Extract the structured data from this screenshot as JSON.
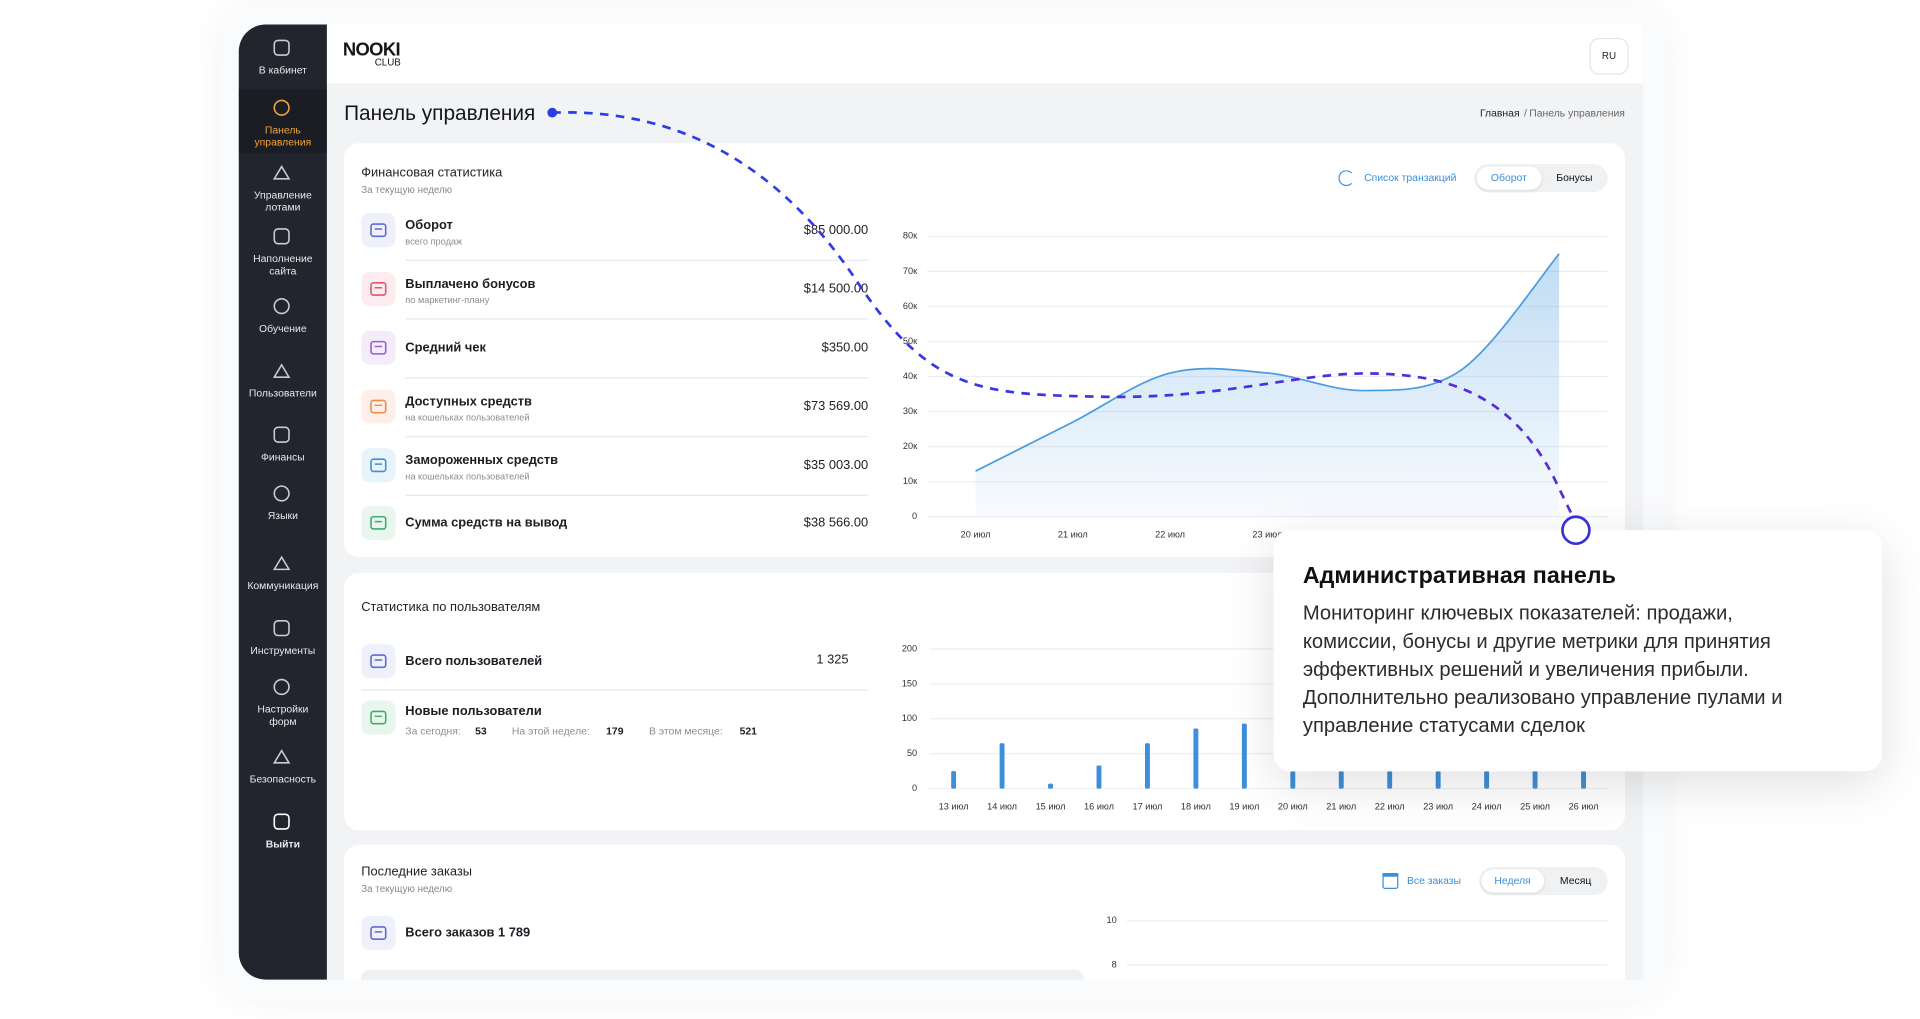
{
  "sidebar": {
    "items": [
      "В кабинет",
      "Панель управления",
      "Управление лотами",
      "Наполнение сайта",
      "Обучение",
      "Пользователи",
      "Финансы",
      "Языки",
      "Коммуникация",
      "Инструменты",
      "Настройки форм",
      "Безопасность",
      "Выйти"
    ]
  },
  "header": {
    "logo": "NOOKI",
    "logo_sub": "CLUB",
    "lang": "RU"
  },
  "page": {
    "title": "Панель управления",
    "breadcrumb": [
      "Главная",
      "/",
      "Панель управления"
    ]
  },
  "finance": {
    "title": "Финансовая статистика",
    "subtitle": "За текущую неделю",
    "link": "Список транзакций",
    "tabs": [
      "Оборот",
      "Бонусы"
    ],
    "rows": [
      {
        "label": "Оборот",
        "sub": "всего продаж",
        "value": "$85 000.00"
      },
      {
        "label": "Выплачено бонусов",
        "sub": "по маркетинг-плану",
        "value": "$14 500.00"
      },
      {
        "label": "Средний чек",
        "value": "$350.00"
      },
      {
        "label": "Доступных средств",
        "sub": "на кошельках пользователей",
        "value": "$73 569.00"
      },
      {
        "label": "Замороженных средств",
        "sub": "на кошельках пользователей",
        "value": "$35 003.00"
      },
      {
        "label": "Сумма средств на вывод",
        "value": "$38 566.00"
      }
    ]
  },
  "users": {
    "title": "Статистика по пользователям",
    "total_label": "Всего пользователей",
    "total": "1 325",
    "new_label": "Новые пользователи",
    "stats": [
      {
        "label": "За сегодня:",
        "value": "53"
      },
      {
        "label": "На этой неделе:",
        "value": "179"
      },
      {
        "label": "В этом месяце:",
        "value": "521"
      }
    ]
  },
  "orders": {
    "title": "Последние заказы",
    "subtitle": "За текущую неделю",
    "link": "Все заказы",
    "tabs": [
      "Неделя",
      "Месяц"
    ],
    "total": "Всего заказов 1 789"
  },
  "popup": {
    "title": "Административная панель",
    "text": [
      "Мониторинг ключевых показателей: продажи,",
      "комиссии, бонусы и другие метрики для принятия",
      "эффективных решений и увеличения прибыли.",
      "Дополнительно реализовано управление пулами и",
      "управление статусами сделок"
    ]
  },
  "chart_data": [
    {
      "type": "line",
      "categories": [
        "20 июл",
        "21 июл",
        "22 июл",
        "23 июл",
        null,
        null,
        null
      ],
      "values": [
        13000,
        27000,
        41000,
        41000,
        36000,
        42000,
        75000
      ],
      "color": "#4a9be0",
      "ylim": [
        0,
        80000
      ],
      "yticks": [
        0,
        {
          "value": 10000,
          "label": "10к"
        },
        {
          "value": 20000,
          "label": "20к"
        },
        {
          "value": 30000,
          "label": "30к"
        },
        {
          "value": 40000,
          "label": "40к"
        },
        {
          "value": 50000,
          "label": "50к"
        },
        {
          "value": 60000,
          "label": "60к"
        },
        {
          "value": 70000,
          "label": "70к"
        },
        {
          "value": 80000,
          "label": "80к"
        }
      ],
      "grid": true
    },
    {
      "type": "bar",
      "categories": [
        "13 июл",
        "14 июл",
        "15 июл",
        "16 июл",
        "17 июл",
        "18 июл",
        "19 июл",
        "20 июл",
        "21 июл",
        "22 июл",
        "23 июл",
        "24 июл",
        "25 июл",
        "26 июл"
      ],
      "values": [
        25,
        65,
        7,
        33,
        65,
        86,
        93,
        25,
        25,
        25,
        25,
        25,
        25,
        25
      ],
      "color": "#3d8fda",
      "ylim": [
        0,
        200
      ],
      "yticks": [
        0,
        50,
        100,
        150,
        200
      ],
      "grid": true
    },
    {
      "type": "bar",
      "categories": [],
      "values": [],
      "color": "#3d8fda",
      "ylim": [
        0,
        10
      ],
      "yticks": [
        8,
        10
      ],
      "grid": true
    }
  ]
}
